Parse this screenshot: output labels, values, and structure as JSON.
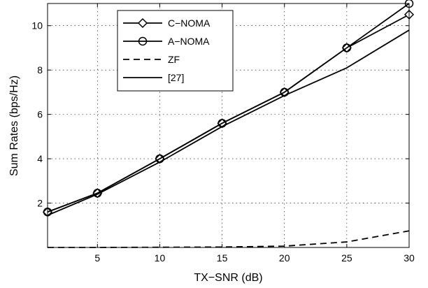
{
  "chart_data": {
    "type": "line",
    "title": "",
    "xlabel": "TX−SNR (dB)",
    "ylabel": "Sum Rates (bps/Hz)",
    "xlim": [
      1,
      30
    ],
    "ylim": [
      0,
      11
    ],
    "grid": true,
    "legend_position": "top-left",
    "x_ticks": [
      {
        "value": 5,
        "label": "5"
      },
      {
        "value": 10,
        "label": "10"
      },
      {
        "value": 15,
        "label": "15"
      },
      {
        "value": 20,
        "label": "20"
      },
      {
        "value": 25,
        "label": "25"
      },
      {
        "value": 30,
        "label": "30"
      }
    ],
    "y_ticks": [
      {
        "value": 2,
        "label": "2"
      },
      {
        "value": 4,
        "label": "4"
      },
      {
        "value": 6,
        "label": "6"
      },
      {
        "value": 8,
        "label": "8"
      },
      {
        "value": 10,
        "label": "10"
      }
    ],
    "x": [
      1,
      5,
      10,
      15,
      20,
      25,
      30
    ],
    "series": [
      {
        "name": "C−NOMA",
        "marker": "diamond",
        "dash": "solid",
        "color": "#000000",
        "values": [
          1.6,
          2.45,
          4.0,
          5.6,
          7.0,
          9.0,
          10.5
        ]
      },
      {
        "name": "A−NOMA",
        "marker": "circle",
        "dash": "solid",
        "color": "#000000",
        "values": [
          1.6,
          2.45,
          4.0,
          5.6,
          7.0,
          9.0,
          11.0
        ]
      },
      {
        "name": "ZF",
        "marker": "none",
        "dash": "dashed",
        "color": "#000000",
        "values": [
          0.0,
          0.0,
          0.01,
          0.02,
          0.06,
          0.25,
          0.75
        ]
      },
      {
        "name": "[27]",
        "marker": "none",
        "dash": "solid",
        "color": "#000000",
        "values": [
          1.45,
          2.4,
          3.85,
          5.45,
          6.85,
          8.1,
          9.8
        ]
      }
    ]
  }
}
